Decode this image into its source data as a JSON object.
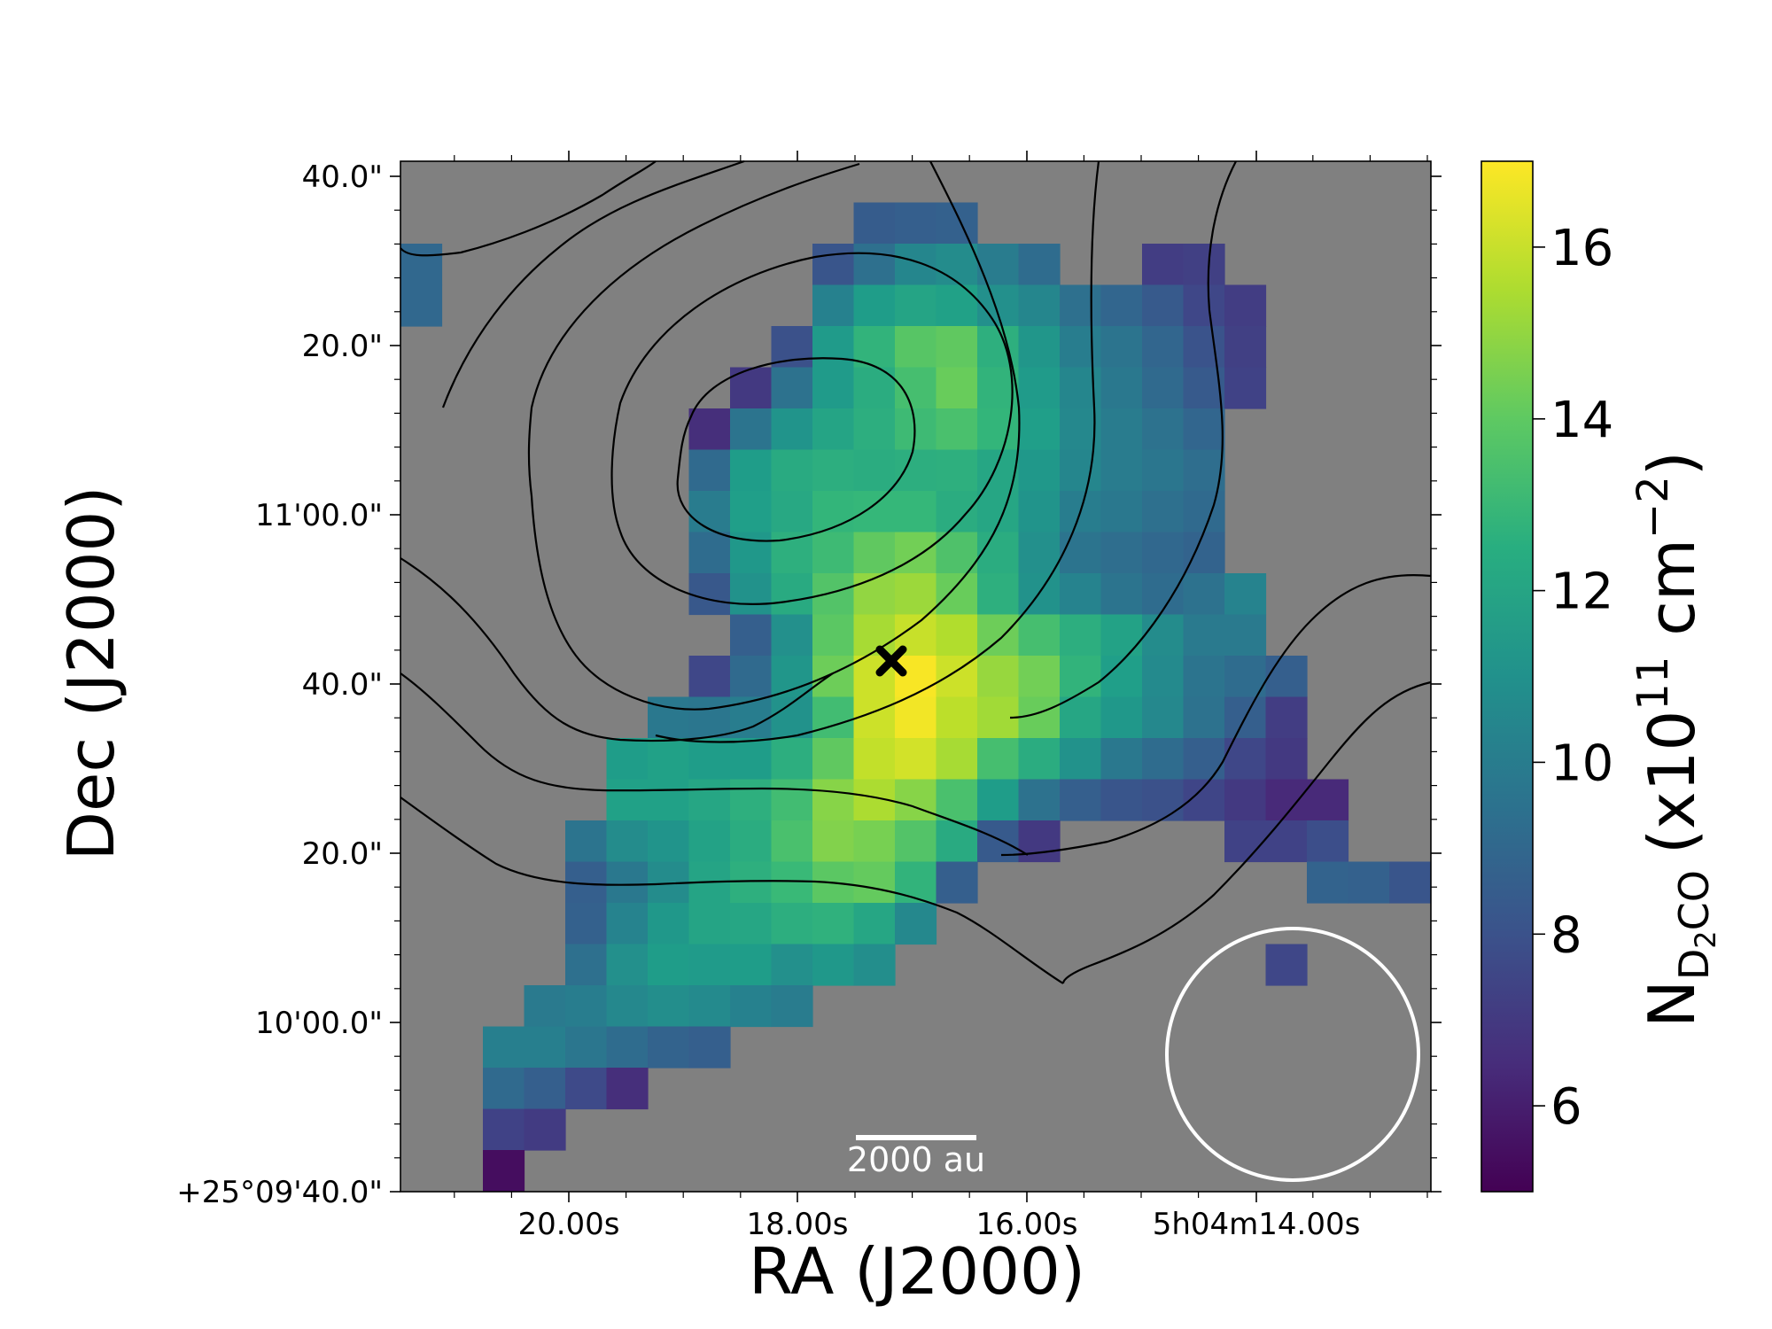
{
  "chart_data": {
    "type": "heatmap",
    "xlabel": "RA (J2000)",
    "ylabel": "Dec (J2000)",
    "x_ticks": [
      "20.00s",
      "18.00s",
      "16.00s",
      "5h04m14.00s"
    ],
    "y_ticks": [
      "+25°09'40.0\"",
      "10'00.0\"",
      "20.0\"",
      "40.0\"",
      "11'00.0\"",
      "20.0\"",
      "40.0\""
    ],
    "colorbar": {
      "label_main": "N",
      "label_sub": "D",
      "label_sub2": "2",
      "label_sub3": "CO",
      "label_units": "(x10",
      "label_exp": "11",
      "label_units2": " cm",
      "label_exp2": "−2",
      "label_close": ")",
      "ticks": [
        "6",
        "8",
        "10",
        "12",
        "14",
        "16"
      ],
      "range": [
        5,
        17
      ],
      "colormap": "viridis"
    },
    "grid": false,
    "background_color": "#808080",
    "marker": "cross",
    "scale_bar_label": "2000 au",
    "beam": "circle",
    "notes_pixels": "pixel map N(D2CO) in units of 1e11 cm^-2; null = masked",
    "pixels": [
      [
        null,
        null,
        null,
        null,
        null,
        null,
        null,
        null,
        null,
        null,
        null,
        null,
        null,
        null,
        null,
        null,
        null,
        null,
        null,
        null,
        null,
        null,
        null,
        null,
        null
      ],
      [
        null,
        null,
        null,
        null,
        null,
        null,
        null,
        null,
        null,
        null,
        null,
        8.5,
        8.6,
        8.7,
        null,
        null,
        null,
        null,
        null,
        null,
        null,
        null,
        null,
        null,
        null
      ],
      [
        9.0,
        null,
        null,
        null,
        null,
        null,
        null,
        null,
        null,
        null,
        8.2,
        9.4,
        10.5,
        10.8,
        10.0,
        9.2,
        null,
        null,
        7.2,
        7.3,
        null,
        null,
        null,
        null,
        null
      ],
      [
        9.0,
        null,
        null,
        null,
        null,
        null,
        null,
        null,
        null,
        null,
        10.3,
        11.6,
        12.0,
        11.8,
        11.0,
        10.5,
        9.4,
        8.9,
        8.4,
        7.6,
        7.2,
        null,
        null,
        null,
        null
      ],
      [
        null,
        null,
        null,
        null,
        null,
        null,
        null,
        null,
        null,
        8.0,
        11.5,
        12.8,
        13.8,
        14.0,
        12.6,
        11.3,
        10.1,
        9.6,
        8.9,
        8.1,
        7.3,
        null,
        null,
        null,
        null
      ],
      [
        null,
        null,
        null,
        null,
        null,
        null,
        null,
        null,
        7.0,
        9.5,
        11.5,
        12.4,
        13.4,
        14.2,
        12.8,
        11.5,
        10.5,
        9.8,
        9.1,
        8.4,
        7.4,
        null,
        null,
        null,
        null
      ],
      [
        null,
        null,
        null,
        null,
        null,
        null,
        null,
        6.6,
        9.6,
        11.2,
        12.0,
        12.5,
        13.2,
        13.5,
        12.9,
        11.7,
        10.6,
        10.0,
        9.5,
        8.9,
        null,
        null,
        null,
        null,
        null
      ],
      [
        null,
        null,
        null,
        null,
        null,
        null,
        null,
        9.1,
        11.6,
        12.3,
        12.5,
        12.4,
        12.5,
        12.6,
        12.1,
        11.4,
        10.5,
        10.0,
        9.7,
        9.3,
        null,
        null,
        null,
        null,
        null
      ],
      [
        null,
        null,
        null,
        null,
        null,
        null,
        null,
        10.0,
        11.7,
        12.2,
        12.9,
        13.0,
        13.0,
        12.4,
        12.1,
        11.2,
        10.1,
        9.8,
        9.4,
        9.1,
        null,
        null,
        null,
        null,
        null
      ],
      [
        null,
        null,
        null,
        null,
        null,
        null,
        null,
        9.2,
        11.4,
        12.6,
        13.2,
        14.0,
        14.4,
        13.6,
        12.4,
        11.0,
        9.6,
        9.3,
        9.0,
        8.8,
        null,
        null,
        null,
        null,
        null
      ],
      [
        null,
        null,
        null,
        null,
        null,
        null,
        null,
        8.3,
        11.1,
        12.3,
        13.7,
        15.0,
        15.2,
        14.2,
        12.6,
        11.1,
        10.4,
        9.6,
        9.2,
        9.5,
        10.4,
        null,
        null,
        null,
        null
      ],
      [
        null,
        null,
        null,
        null,
        null,
        null,
        null,
        null,
        8.6,
        11.0,
        13.9,
        15.4,
        16.0,
        15.6,
        14.3,
        13.4,
        12.5,
        11.9,
        10.8,
        9.9,
        9.9,
        null,
        null,
        null,
        null
      ],
      [
        null,
        null,
        null,
        null,
        null,
        null,
        null,
        7.6,
        9.1,
        11.3,
        14.3,
        16.1,
        16.9,
        16.1,
        15.1,
        14.4,
        12.8,
        11.7,
        10.7,
        9.6,
        9.2,
        8.6,
        null,
        null,
        null
      ],
      [
        null,
        null,
        null,
        null,
        null,
        null,
        9.8,
        9.7,
        10.1,
        11.1,
        13.3,
        16.1,
        16.8,
        15.8,
        15.3,
        14.2,
        12.1,
        11.4,
        10.6,
        9.5,
        8.6,
        7.2,
        null,
        null,
        null
      ],
      [
        null,
        null,
        null,
        null,
        null,
        11.6,
        11.8,
        11.6,
        11.6,
        12.5,
        14.0,
        15.9,
        16.2,
        15.4,
        13.4,
        12.4,
        11.1,
        9.8,
        9.2,
        8.6,
        7.6,
        7.0,
        null,
        null,
        null
      ],
      [
        null,
        null,
        null,
        null,
        null,
        11.8,
        11.8,
        12.1,
        12.6,
        13.3,
        14.8,
        15.5,
        14.8,
        13.5,
        11.6,
        9.5,
        8.6,
        8.2,
        8.0,
        7.5,
        7.0,
        6.4,
        6.4,
        null,
        null
      ],
      [
        null,
        null,
        null,
        null,
        9.6,
        10.8,
        11.2,
        11.9,
        12.4,
        13.5,
        14.7,
        14.5,
        13.7,
        12.3,
        8.4,
        7.0,
        null,
        null,
        null,
        null,
        7.4,
        7.4,
        7.9,
        null,
        null
      ],
      [
        null,
        null,
        null,
        null,
        8.6,
        9.8,
        10.8,
        12.0,
        12.6,
        13.1,
        13.9,
        14.1,
        12.8,
        8.6,
        null,
        null,
        null,
        null,
        null,
        null,
        null,
        null,
        8.8,
        8.7,
        8.2
      ],
      [
        null,
        null,
        null,
        null,
        8.7,
        10.4,
        11.4,
        12.0,
        12.1,
        12.5,
        12.7,
        12.1,
        10.6,
        null,
        null,
        null,
        null,
        null,
        null,
        null,
        null,
        null,
        null,
        null,
        null
      ],
      [
        null,
        null,
        null,
        null,
        9.4,
        11.0,
        11.6,
        11.5,
        11.6,
        11.0,
        11.4,
        10.9,
        null,
        null,
        null,
        null,
        null,
        null,
        null,
        null,
        null,
        7.6,
        null,
        null,
        null
      ],
      [
        null,
        null,
        null,
        9.9,
        10.1,
        10.6,
        10.9,
        10.7,
        10.3,
        10.0,
        null,
        null,
        null,
        null,
        null,
        null,
        null,
        null,
        null,
        null,
        null,
        null,
        null,
        null,
        null
      ],
      [
        null,
        null,
        10.2,
        10.2,
        9.7,
        9.2,
        8.8,
        8.6,
        null,
        null,
        null,
        null,
        null,
        null,
        null,
        null,
        null,
        null,
        null,
        null,
        null,
        null,
        null,
        null,
        null
      ],
      [
        null,
        null,
        9.1,
        8.6,
        7.7,
        6.6,
        null,
        null,
        null,
        null,
        null,
        null,
        null,
        null,
        null,
        null,
        null,
        null,
        null,
        null,
        null,
        null,
        null,
        null,
        null
      ],
      [
        null,
        null,
        7.4,
        7.1,
        null,
        null,
        null,
        null,
        null,
        null,
        null,
        null,
        null,
        null,
        null,
        null,
        null,
        null,
        null,
        null,
        null,
        null,
        null,
        null,
        null
      ],
      [
        null,
        null,
        5.4,
        null,
        null,
        null,
        null,
        null,
        null,
        null,
        null,
        null,
        null,
        null,
        null,
        null,
        null,
        null,
        null,
        null,
        null,
        null,
        null,
        null,
        null
      ]
    ]
  }
}
